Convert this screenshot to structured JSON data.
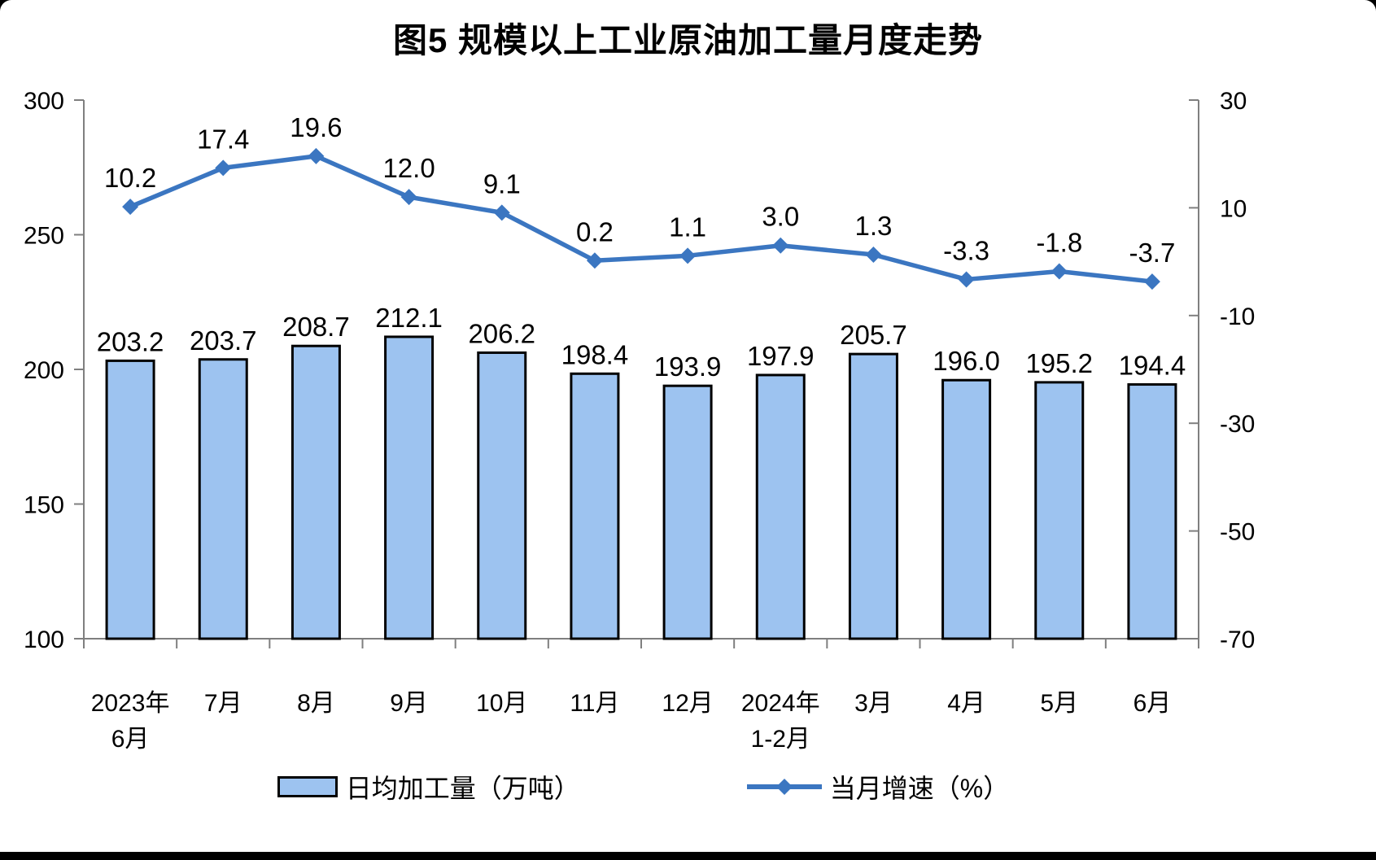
{
  "page": {
    "title": "图5 规模以上工业原油加工量月度走势"
  },
  "chart_data": {
    "type": "bar",
    "subtype": "bar-line-combo",
    "title": "图5 规模以上工业原油加工量月度走势",
    "categories": [
      "2023年6月",
      "7月",
      "8月",
      "9月",
      "10月",
      "11月",
      "12月",
      "2024年1-2月",
      "3月",
      "4月",
      "5月",
      "6月"
    ],
    "category_label_lines": [
      [
        "2023年",
        "6月"
      ],
      [
        "7月"
      ],
      [
        "8月"
      ],
      [
        "9月"
      ],
      [
        "10月"
      ],
      [
        "11月"
      ],
      [
        "12月"
      ],
      [
        "2024年",
        "1-2月"
      ],
      [
        "3月"
      ],
      [
        "4月"
      ],
      [
        "5月"
      ],
      [
        "6月"
      ]
    ],
    "series": [
      {
        "name": "日均加工量（万吨）",
        "chart_type": "bar",
        "axis": "left",
        "color": "#9DC3F0",
        "border_color": "#000000",
        "values": [
          203.2,
          203.7,
          208.7,
          212.1,
          206.2,
          198.4,
          193.9,
          197.9,
          205.7,
          196.0,
          195.2,
          194.4
        ]
      },
      {
        "name": "当月增速（%）",
        "chart_type": "line",
        "axis": "right",
        "color": "#3B76C1",
        "marker": "diamond",
        "values": [
          10.2,
          17.4,
          19.6,
          12.0,
          9.1,
          0.2,
          1.1,
          3.0,
          1.3,
          -3.3,
          -1.8,
          -3.7
        ]
      }
    ],
    "left_axis": {
      "min": 100,
      "max": 300,
      "ticks": [
        100,
        150,
        200,
        250,
        300
      ]
    },
    "right_axis": {
      "min": -70,
      "max": 30,
      "ticks": [
        -70,
        -50,
        -30,
        -10,
        10,
        30
      ]
    },
    "legend_position": "bottom",
    "grid": false,
    "colors": {
      "bar_fill": "#9DC3F0",
      "bar_border": "#000000",
      "line": "#3B76C1",
      "axis": "#7F7F7F",
      "text": "#000000"
    }
  }
}
